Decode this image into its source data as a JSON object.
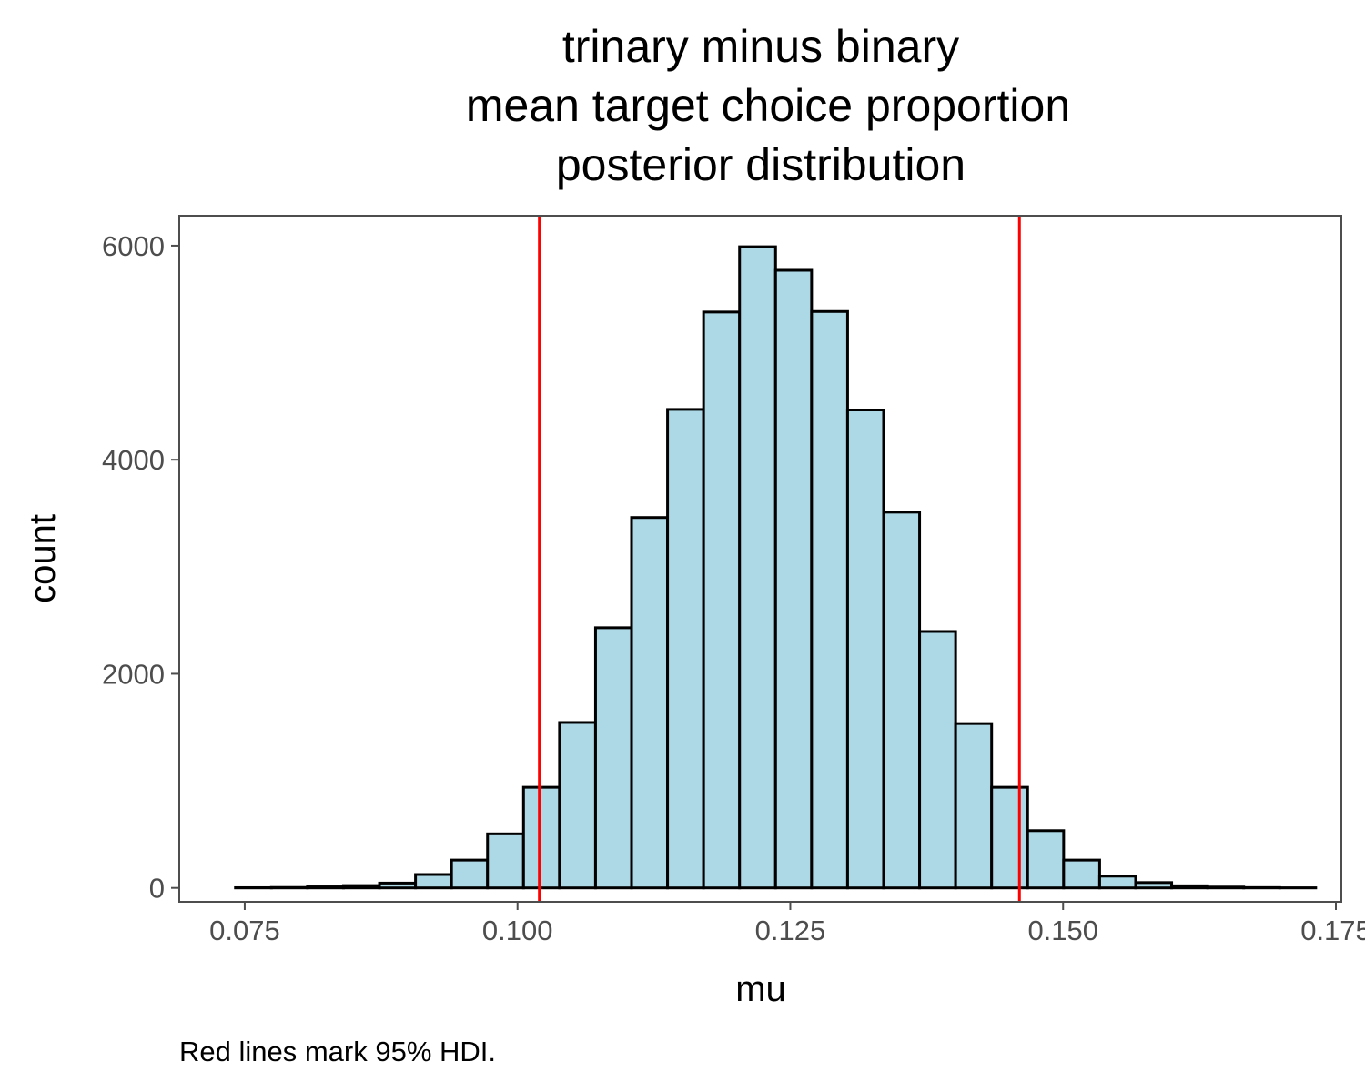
{
  "chart_data": {
    "type": "bar",
    "title_lines": [
      "trinary minus binary",
      "mean target choice proportion",
      "posterior distribution"
    ],
    "xlabel": "mu",
    "ylabel": "count",
    "caption": "Red lines mark 95% HDI.",
    "xlim": [
      0.069,
      0.1755
    ],
    "ylim": [
      -130,
      6280
    ],
    "x_ticks": [
      0.075,
      0.1,
      0.125,
      0.15,
      0.175
    ],
    "x_tick_labels": [
      "0.075",
      "0.100",
      "0.125",
      "0.150",
      "0.175"
    ],
    "y_ticks": [
      0,
      2000,
      4000,
      6000
    ],
    "y_tick_labels": [
      "0",
      "2000",
      "4000",
      "6000"
    ],
    "bin_width": 0.0033,
    "bin_centers": [
      0.0758,
      0.0791,
      0.0824,
      0.0857,
      0.089,
      0.0923,
      0.0956,
      0.0989,
      0.1022,
      0.1055,
      0.1088,
      0.1121,
      0.1154,
      0.1187,
      0.122,
      0.1253,
      0.1286,
      0.1319,
      0.1352,
      0.1385,
      0.1418,
      0.1451,
      0.1484,
      0.1517,
      0.155,
      0.1583,
      0.1616,
      0.1649,
      0.1682,
      0.1715
    ],
    "values": [
      2,
      4,
      10,
      22,
      45,
      125,
      260,
      505,
      940,
      1545,
      2430,
      3460,
      4470,
      5380,
      5990,
      5770,
      5385,
      4465,
      3510,
      2395,
      1535,
      940,
      535,
      260,
      110,
      50,
      20,
      8,
      3,
      1
    ],
    "vlines": [
      0.102,
      0.146
    ],
    "colors": {
      "bar_fill": "#add8e6",
      "bar_stroke": "#000000",
      "vline": "#ff0000",
      "panel_border": "#4d4d4d",
      "tick_text": "#4d4d4d"
    },
    "grid": false
  }
}
